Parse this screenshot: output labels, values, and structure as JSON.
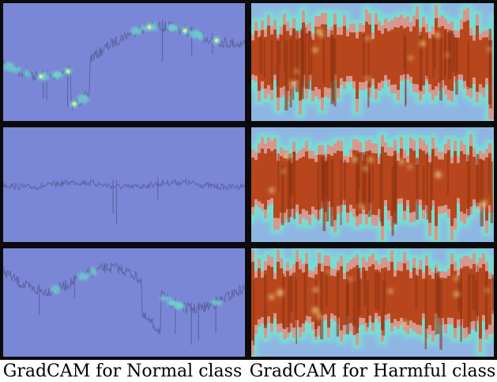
{
  "columns": [
    {
      "caption": "GradCAM for Normal class",
      "heatmap": "normal"
    },
    {
      "caption": "GradCAM for Harmful class",
      "heatmap": "harmful"
    }
  ],
  "rows": 3,
  "colors": {
    "frame": "#0b0b0b",
    "normal_background": "#7a86d6",
    "signal_trace": "#5a5f9e",
    "low_activation_highlight": "#6fd6d0",
    "high_activation_peak": "#f4e08a",
    "harmful_background": "#8fb6e3",
    "harmful_edge_glow": "#76e0d2",
    "harmful_fill": "#b8461c",
    "harmful_fill_dark": "#8f3312",
    "harmful_pink_band": "#d7978d"
  }
}
